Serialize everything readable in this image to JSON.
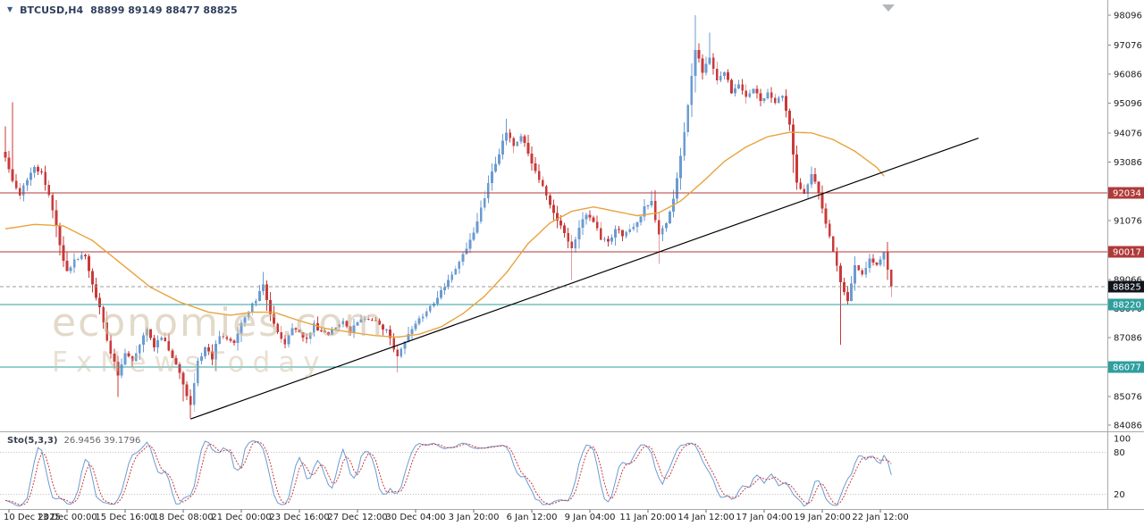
{
  "header": {
    "dropdown_icon": "▼",
    "symbol": "BTCUSD,H4",
    "ohlc": "88899 89149 88477 88825"
  },
  "watermark": {
    "brand": "economies.com",
    "tagline": "FxNewsToday"
  },
  "indicator": {
    "label": "Sto(5,3,3)",
    "values": "26.9456 39.1796"
  },
  "chart_data": {
    "type": "candlestick",
    "symbol": "BTCUSD",
    "timeframe": "H4",
    "ohlc_display": {
      "open": 88899,
      "high": 89149,
      "low": 88477,
      "close": 88825
    },
    "price_axis": {
      "y_max": 98620,
      "y_min": 83880,
      "ticks": [
        98096,
        97076,
        96086,
        95096,
        94076,
        93086,
        91076,
        89066,
        88076,
        87086,
        85076,
        84086
      ]
    },
    "time_axis": {
      "labels": [
        "10 Dec 2025",
        "13 Dec 00:00",
        "15 Dec 16:00",
        "18 Dec 08:00",
        "21 Dec 00:00",
        "23 Dec 16:00",
        "27 Dec 12:00",
        "30 Dec 04:00",
        "3 Jan 20:00",
        "6 Jan 12:00",
        "9 Jan 04:00",
        "11 Jan 20:00",
        "14 Jan 12:00",
        "17 Jan 04:00",
        "19 Jan 20:00",
        "22 Jan 12:00"
      ],
      "first_index": 1,
      "step_candles": 16
    },
    "candle_count": 245,
    "last_close": 88825,
    "close_waypoints": [
      [
        0,
        93300
      ],
      [
        2,
        92400
      ],
      [
        4,
        92000
      ],
      [
        6,
        92500
      ],
      [
        8,
        92900
      ],
      [
        10,
        92700
      ],
      [
        13,
        91500
      ],
      [
        15,
        90200
      ],
      [
        17,
        89300
      ],
      [
        19,
        89700
      ],
      [
        22,
        89900
      ],
      [
        24,
        88900
      ],
      [
        26,
        88100
      ],
      [
        28,
        87000
      ],
      [
        31,
        85800
      ],
      [
        33,
        86600
      ],
      [
        35,
        86300
      ],
      [
        37,
        86900
      ],
      [
        39,
        87400
      ],
      [
        41,
        86800
      ],
      [
        43,
        87100
      ],
      [
        45,
        86700
      ],
      [
        47,
        86200
      ],
      [
        49,
        85500
      ],
      [
        51,
        84800
      ],
      [
        53,
        86300
      ],
      [
        55,
        86700
      ],
      [
        57,
        86400
      ],
      [
        59,
        87200
      ],
      [
        61,
        87000
      ],
      [
        63,
        86900
      ],
      [
        65,
        87600
      ],
      [
        67,
        88000
      ],
      [
        69,
        88400
      ],
      [
        71,
        88900
      ],
      [
        73,
        87900
      ],
      [
        75,
        87200
      ],
      [
        77,
        86900
      ],
      [
        79,
        87400
      ],
      [
        81,
        87200
      ],
      [
        83,
        87000
      ],
      [
        85,
        87500
      ],
      [
        87,
        87300
      ],
      [
        89,
        87200
      ],
      [
        91,
        87500
      ],
      [
        93,
        87700
      ],
      [
        95,
        87300
      ],
      [
        97,
        87600
      ],
      [
        99,
        87800
      ],
      [
        101,
        87700
      ],
      [
        103,
        87500
      ],
      [
        105,
        87300
      ],
      [
        107,
        86700
      ],
      [
        108,
        86400
      ],
      [
        110,
        87000
      ],
      [
        112,
        87400
      ],
      [
        114,
        87700
      ],
      [
        116,
        88000
      ],
      [
        118,
        88300
      ],
      [
        120,
        88700
      ],
      [
        122,
        89000
      ],
      [
        124,
        89400
      ],
      [
        126,
        90000
      ],
      [
        128,
        90400
      ],
      [
        130,
        91000
      ],
      [
        132,
        91900
      ],
      [
        134,
        92700
      ],
      [
        136,
        93400
      ],
      [
        138,
        94100
      ],
      [
        140,
        93700
      ],
      [
        142,
        94000
      ],
      [
        144,
        93400
      ],
      [
        146,
        92800
      ],
      [
        148,
        92200
      ],
      [
        150,
        91600
      ],
      [
        152,
        91100
      ],
      [
        154,
        90600
      ],
      [
        156,
        90100
      ],
      [
        158,
        90800
      ],
      [
        160,
        91300
      ],
      [
        162,
        91000
      ],
      [
        164,
        90500
      ],
      [
        166,
        90300
      ],
      [
        168,
        90800
      ],
      [
        170,
        90600
      ],
      [
        172,
        90800
      ],
      [
        174,
        91000
      ],
      [
        176,
        91500
      ],
      [
        178,
        91700
      ],
      [
        180,
        90600
      ],
      [
        182,
        91000
      ],
      [
        184,
        91800
      ],
      [
        186,
        93300
      ],
      [
        188,
        95000
      ],
      [
        190,
        96900
      ],
      [
        192,
        96200
      ],
      [
        194,
        96700
      ],
      [
        196,
        95900
      ],
      [
        198,
        96200
      ],
      [
        200,
        95500
      ],
      [
        202,
        95800
      ],
      [
        204,
        95300
      ],
      [
        206,
        95600
      ],
      [
        208,
        95200
      ],
      [
        210,
        95400
      ],
      [
        212,
        95100
      ],
      [
        214,
        95300
      ],
      [
        216,
        94300
      ],
      [
        218,
        92300
      ],
      [
        220,
        92000
      ],
      [
        222,
        92700
      ],
      [
        224,
        92100
      ],
      [
        226,
        91000
      ],
      [
        228,
        90100
      ],
      [
        230,
        88900
      ],
      [
        232,
        88300
      ],
      [
        234,
        89500
      ],
      [
        236,
        89200
      ],
      [
        238,
        89800
      ],
      [
        240,
        89600
      ],
      [
        242,
        90000
      ],
      [
        243,
        89400
      ],
      [
        244,
        88825
      ]
    ],
    "wick_overrides": [
      [
        0,
        94300,
        null
      ],
      [
        2,
        95120,
        null
      ],
      [
        31,
        null,
        85050
      ],
      [
        49,
        null,
        84900
      ],
      [
        51,
        null,
        84330
      ],
      [
        71,
        89320,
        null
      ],
      [
        108,
        null,
        85900
      ],
      [
        138,
        94560,
        null
      ],
      [
        156,
        null,
        89050
      ],
      [
        178,
        92100,
        null
      ],
      [
        180,
        null,
        89600
      ],
      [
        190,
        98096,
        null
      ],
      [
        194,
        97500,
        null
      ],
      [
        230,
        null,
        86840
      ],
      [
        244,
        null,
        88480
      ]
    ],
    "ma_waypoints": [
      [
        0,
        90800
      ],
      [
        8,
        90950
      ],
      [
        16,
        90900
      ],
      [
        24,
        90400
      ],
      [
        32,
        89600
      ],
      [
        40,
        88800
      ],
      [
        48,
        88300
      ],
      [
        56,
        87950
      ],
      [
        62,
        87850
      ],
      [
        68,
        87950
      ],
      [
        74,
        87950
      ],
      [
        80,
        87700
      ],
      [
        88,
        87400
      ],
      [
        96,
        87250
      ],
      [
        102,
        87150
      ],
      [
        108,
        87100
      ],
      [
        114,
        87200
      ],
      [
        120,
        87450
      ],
      [
        126,
        87900
      ],
      [
        132,
        88500
      ],
      [
        138,
        89300
      ],
      [
        144,
        90300
      ],
      [
        150,
        91000
      ],
      [
        156,
        91400
      ],
      [
        162,
        91550
      ],
      [
        168,
        91400
      ],
      [
        174,
        91250
      ],
      [
        180,
        91350
      ],
      [
        186,
        91750
      ],
      [
        192,
        92400
      ],
      [
        198,
        93100
      ],
      [
        204,
        93600
      ],
      [
        210,
        93950
      ],
      [
        216,
        94100
      ],
      [
        222,
        94080
      ],
      [
        228,
        93850
      ],
      [
        234,
        93450
      ],
      [
        240,
        92900
      ],
      [
        242,
        92600
      ]
    ],
    "horizontal_lines": [
      {
        "price": 92034,
        "color": "#b03a3a",
        "kind": "resistance"
      },
      {
        "price": 90017,
        "color": "#b03a3a",
        "kind": "resistance"
      },
      {
        "price": 88220,
        "color": "#2f9e9e",
        "kind": "support"
      },
      {
        "price": 86077,
        "color": "#2f9e9e",
        "kind": "support"
      }
    ],
    "current_price": {
      "value": 88825,
      "badge_color": "#10151c",
      "line_color": "#9b9b9b"
    },
    "trendline": {
      "from_index": 51,
      "from_price": 84300,
      "to_index": 268,
      "to_price": 93900,
      "color": "#000000"
    },
    "stochastic": {
      "label": "Sto(5,3,3)",
      "k_period": 5,
      "slowing": 3,
      "d_period": 3,
      "current_k": 26.9456,
      "current_d": 39.1796,
      "axis_labels": [
        100,
        80,
        20
      ],
      "dashed_levels": [
        80,
        20
      ]
    },
    "colors": {
      "up": "#6b9bd2",
      "down": "#c93a3a",
      "ma": "#e8a33c",
      "sto_main": "#6b9bd2",
      "sto_signal": "#c93a3a",
      "separator": "#a9a9a9",
      "axis_text": "#1c1c1c",
      "level_dotted": "#c0c0c0"
    }
  }
}
